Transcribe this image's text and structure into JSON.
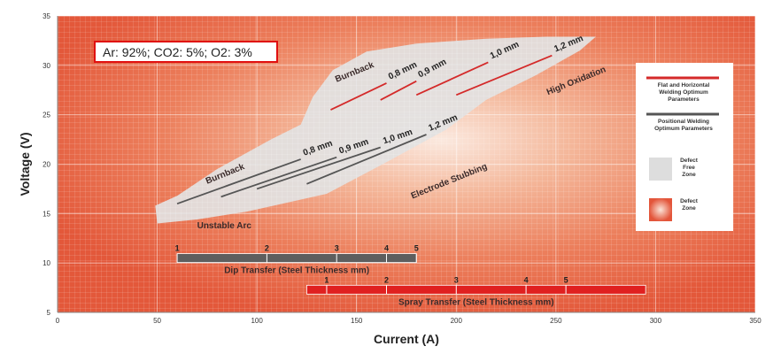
{
  "chart_data": {
    "type": "line",
    "xlabel": "Current (A)",
    "ylabel": "Voltage (V)",
    "xlim": [
      0,
      350
    ],
    "ylim": [
      5,
      35
    ],
    "x_ticks": [
      "0",
      "50",
      "100",
      "150",
      "200",
      "250",
      "300",
      "350"
    ],
    "y_ticks": [
      "5",
      "10",
      "15",
      "20",
      "25",
      "30",
      "35"
    ],
    "gas_mix": "Ar: 92%; CO2: 5%; O2: 3%",
    "zone_labels": [
      {
        "text": "Burnback",
        "x": 75,
        "y": 18.0,
        "angle": -22
      },
      {
        "text": "Burnback",
        "x": 140,
        "y": 28.3,
        "angle": -22
      },
      {
        "text": "Unstable Arc",
        "x": 70,
        "y": 13.5,
        "angle": 0
      },
      {
        "text": "Electrode Stubbing",
        "x": 178,
        "y": 16.5,
        "angle": -22
      },
      {
        "text": "High Oxidation",
        "x": 246,
        "y": 27.0,
        "angle": -22
      }
    ],
    "defect_free_zone": [
      [
        50,
        14
      ],
      [
        49,
        15.8
      ],
      [
        60,
        16.8
      ],
      [
        80,
        19.5
      ],
      [
        107,
        22.5
      ],
      [
        122,
        24
      ],
      [
        128,
        26.8
      ],
      [
        138,
        29.5
      ],
      [
        155,
        31.4
      ],
      [
        180,
        32.2
      ],
      [
        215,
        32.7
      ],
      [
        245,
        32.9
      ],
      [
        270,
        32.9
      ],
      [
        262,
        31.5
      ],
      [
        240,
        29
      ],
      [
        215,
        26.5
      ],
      [
        195,
        23.5
      ],
      [
        165,
        20.2
      ],
      [
        135,
        17
      ],
      [
        95,
        15.2
      ],
      [
        70,
        14.4
      ]
    ],
    "series": [
      {
        "name": "Flat and Horizontal Welding Optimum Parameters",
        "color": "#d42a2a",
        "lines": [
          {
            "label": "0,8 mm",
            "x": [
              137,
              165
            ],
            "y": [
              25.5,
              28.2
            ]
          },
          {
            "label": "0,9 mm",
            "x": [
              162,
              180
            ],
            "y": [
              26.5,
              28.4
            ]
          },
          {
            "label": "1,0 mm",
            "x": [
              180,
              216
            ],
            "y": [
              27.0,
              30.3
            ]
          },
          {
            "label": "1,2 mm",
            "x": [
              200,
              248
            ],
            "y": [
              27.0,
              31.0
            ]
          }
        ]
      },
      {
        "name": "Positional Welding Optimum Parameters",
        "color": "#555555",
        "lines": [
          {
            "label": "0,8 mm",
            "x": [
              60,
              122
            ],
            "y": [
              16.0,
              20.5
            ]
          },
          {
            "label": "0,9 mm",
            "x": [
              82,
              140
            ],
            "y": [
              16.7,
              20.7
            ]
          },
          {
            "label": "1,0 mm",
            "x": [
              100,
              162
            ],
            "y": [
              17.5,
              21.7
            ]
          },
          {
            "label": "1,2 mm",
            "x": [
              125,
              185
            ],
            "y": [
              18.0,
              23.0
            ]
          }
        ]
      }
    ],
    "legend": {
      "position": "right",
      "items": [
        {
          "label": "Flat and Horizontal Welding Optimum Parameters",
          "kind": "line",
          "color": "#d42a2a"
        },
        {
          "label": "Positional Welding Optimum Parameters",
          "kind": "line",
          "color": "#555555"
        },
        {
          "label": "Defect Free Zone",
          "kind": "swatch",
          "color": "#dddddd"
        },
        {
          "label": "Defect Zone",
          "kind": "swatch",
          "color": "#e8603c"
        }
      ]
    },
    "transfer_bars": [
      {
        "label": "Dip Transfer (Steel Thickness mm)",
        "color": "#5e5e5e",
        "x_start": 60,
        "x_end": 180,
        "y": 10.5,
        "ticks": [
          {
            "x": 60,
            "label": "1"
          },
          {
            "x": 105,
            "label": "2"
          },
          {
            "x": 140,
            "label": "3"
          },
          {
            "x": 165,
            "label": "4"
          },
          {
            "x": 180,
            "label": "5"
          }
        ]
      },
      {
        "label": "Spray Transfer (Steel Thickness mm)",
        "color": "#e02020",
        "x_start": 125,
        "x_end": 295,
        "y": 7.3,
        "ticks": [
          {
            "x": 135,
            "label": "1"
          },
          {
            "x": 165,
            "label": "2"
          },
          {
            "x": 200,
            "label": "3"
          },
          {
            "x": 235,
            "label": "4"
          },
          {
            "x": 255,
            "label": "5"
          }
        ]
      }
    ],
    "grid": true
  }
}
